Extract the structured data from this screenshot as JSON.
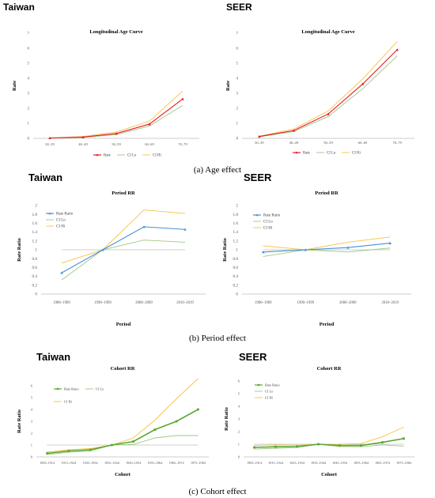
{
  "figure": {
    "captions": [
      "(a) Age effect",
      "(b) Period effect",
      "(c) Cohort effect"
    ]
  },
  "colors": {
    "rate": "#e8192c",
    "rate_ratio_period": "#4a8fd6",
    "rate_ratio_cohort": "#5aa832",
    "ci_lo": "#9cca84",
    "ci_hi": "#f6c242",
    "reference": "#bfbfbf",
    "axis": "#bdbdbd"
  },
  "chart_data": [
    {
      "id": "age_taiwan",
      "region": "Taiwan",
      "type": "line",
      "title": "Longitudinal  Age Curve",
      "ylabel": "Rate",
      "xlabel": "",
      "categories": [
        "30–39",
        "40–49",
        "50–59",
        "60–69",
        "70–79"
      ],
      "ylim": [
        0,
        7
      ],
      "yticks": [
        0,
        1,
        2,
        3,
        4,
        5,
        6,
        7
      ],
      "series": [
        {
          "name": "Rate",
          "values": [
            0.02,
            0.08,
            0.32,
            0.95,
            2.62
          ]
        },
        {
          "name": "CI Lo",
          "values": [
            0.01,
            0.06,
            0.25,
            0.82,
            2.2
          ]
        },
        {
          "name": "CI Hi",
          "values": [
            0.03,
            0.12,
            0.42,
            1.15,
            3.15
          ]
        }
      ],
      "legend": "bottom"
    },
    {
      "id": "age_seer",
      "region": "SEER",
      "type": "line",
      "title": "Longitudinal  Age Curve",
      "ylabel": "Rate",
      "xlabel": "",
      "categories": [
        "30–39",
        "40–49",
        "50–59",
        "60–69",
        "70–79"
      ],
      "ylim": [
        0,
        7
      ],
      "yticks": [
        0,
        1,
        2,
        3,
        4,
        5,
        6,
        7
      ],
      "series": [
        {
          "name": "Rate",
          "values": [
            0.12,
            0.52,
            1.62,
            3.62,
            5.9
          ]
        },
        {
          "name": "CI Lo",
          "values": [
            0.1,
            0.45,
            1.45,
            3.3,
            5.5
          ]
        },
        {
          "name": "CI Hi",
          "values": [
            0.14,
            0.62,
            1.82,
            3.95,
            6.45
          ]
        }
      ],
      "legend": "bottom"
    },
    {
      "id": "period_taiwan",
      "region": "Taiwan",
      "type": "line",
      "title": "Period RR",
      "ylabel": "Rate Ratio",
      "xlabel": "Period",
      "categories": [
        "1980–1989",
        "1990–1999",
        "2000–2009",
        "2010–2019"
      ],
      "ylim": [
        0,
        2
      ],
      "yticks": [
        0,
        0.2,
        0.4,
        0.6,
        0.8,
        1,
        1.2,
        1.4,
        1.6,
        1.8,
        2
      ],
      "reference_line": 1,
      "series": [
        {
          "name": "Rate Ratio",
          "values": [
            0.48,
            1.0,
            1.52,
            1.46
          ]
        },
        {
          "name": "CI Lo",
          "values": [
            0.32,
            1.0,
            1.22,
            1.17
          ]
        },
        {
          "name": "CI Hi",
          "values": [
            0.7,
            1.0,
            1.9,
            1.82
          ]
        }
      ],
      "legend": "top-left"
    },
    {
      "id": "period_seer",
      "region": "SEER",
      "type": "line",
      "title": "Period RR",
      "ylabel": "Rate Ratio",
      "xlabel": "Period",
      "categories": [
        "1980–1989",
        "1990–1999",
        "2000–2009",
        "2010–2019"
      ],
      "ylim": [
        0,
        2
      ],
      "yticks": [
        0,
        0.2,
        0.4,
        0.6,
        0.8,
        1,
        1.2,
        1.4,
        1.6,
        1.8,
        2
      ],
      "reference_line": 1,
      "series": [
        {
          "name": "Rate Ratio",
          "values": [
            0.95,
            1.0,
            1.05,
            1.15
          ]
        },
        {
          "name": "CI Lo",
          "values": [
            0.85,
            1.0,
            0.95,
            1.04
          ]
        },
        {
          "name": "CI Hi",
          "values": [
            1.09,
            1.0,
            1.17,
            1.29
          ]
        }
      ],
      "legend": "top-left"
    },
    {
      "id": "cohort_taiwan",
      "region": "Taiwan",
      "type": "line",
      "title": "Cohort RR",
      "ylabel": "Rate Ratio",
      "xlabel": "Cohort",
      "categories": [
        "1905–1914",
        "1915–1924",
        "1925–1934",
        "1935–1944",
        "1945–1954",
        "1955–1964",
        "1965–1974",
        "1975–1984"
      ],
      "ylim": [
        0,
        6
      ],
      "yticks": [
        0,
        1,
        2,
        3,
        4,
        5,
        6
      ],
      "reference_line": 1,
      "series": [
        {
          "name": "Rate Ratio",
          "values": [
            0.3,
            0.5,
            0.6,
            1.0,
            1.3,
            2.3,
            3.0,
            4.0
          ]
        },
        {
          "name": "CI Lo",
          "values": [
            0.2,
            0.4,
            0.5,
            1.0,
            1.05,
            1.6,
            1.8,
            1.8
          ]
        },
        {
          "name": "CI Hi",
          "values": [
            0.4,
            0.6,
            0.7,
            1.0,
            1.6,
            3.1,
            4.9,
            6.6
          ]
        }
      ],
      "legend": "top-left"
    },
    {
      "id": "cohort_seer",
      "region": "SEER",
      "type": "line",
      "title": "Cohort RR",
      "ylabel": "Rate Ratio",
      "xlabel": "Cohort",
      "categories": [
        "1905–1914",
        "1915–1924",
        "1925–1934",
        "1935–1944",
        "1945–1954",
        "1955–1964",
        "1965–1974",
        "1975–1984"
      ],
      "ylim": [
        0,
        6
      ],
      "yticks": [
        0,
        1,
        2,
        3,
        4,
        5,
        6
      ],
      "reference_line": 1,
      "series": [
        {
          "name": "Rate Ratio",
          "values": [
            0.75,
            0.8,
            0.82,
            1.0,
            0.9,
            0.9,
            1.15,
            1.45
          ]
        },
        {
          "name": "CI Lo",
          "values": [
            0.62,
            0.68,
            0.74,
            1.0,
            0.82,
            0.8,
            0.95,
            0.85
          ]
        },
        {
          "name": "CI Hi",
          "values": [
            0.9,
            0.95,
            0.92,
            1.0,
            1.0,
            1.05,
            1.6,
            2.35
          ]
        }
      ],
      "legend": "top-left"
    }
  ]
}
